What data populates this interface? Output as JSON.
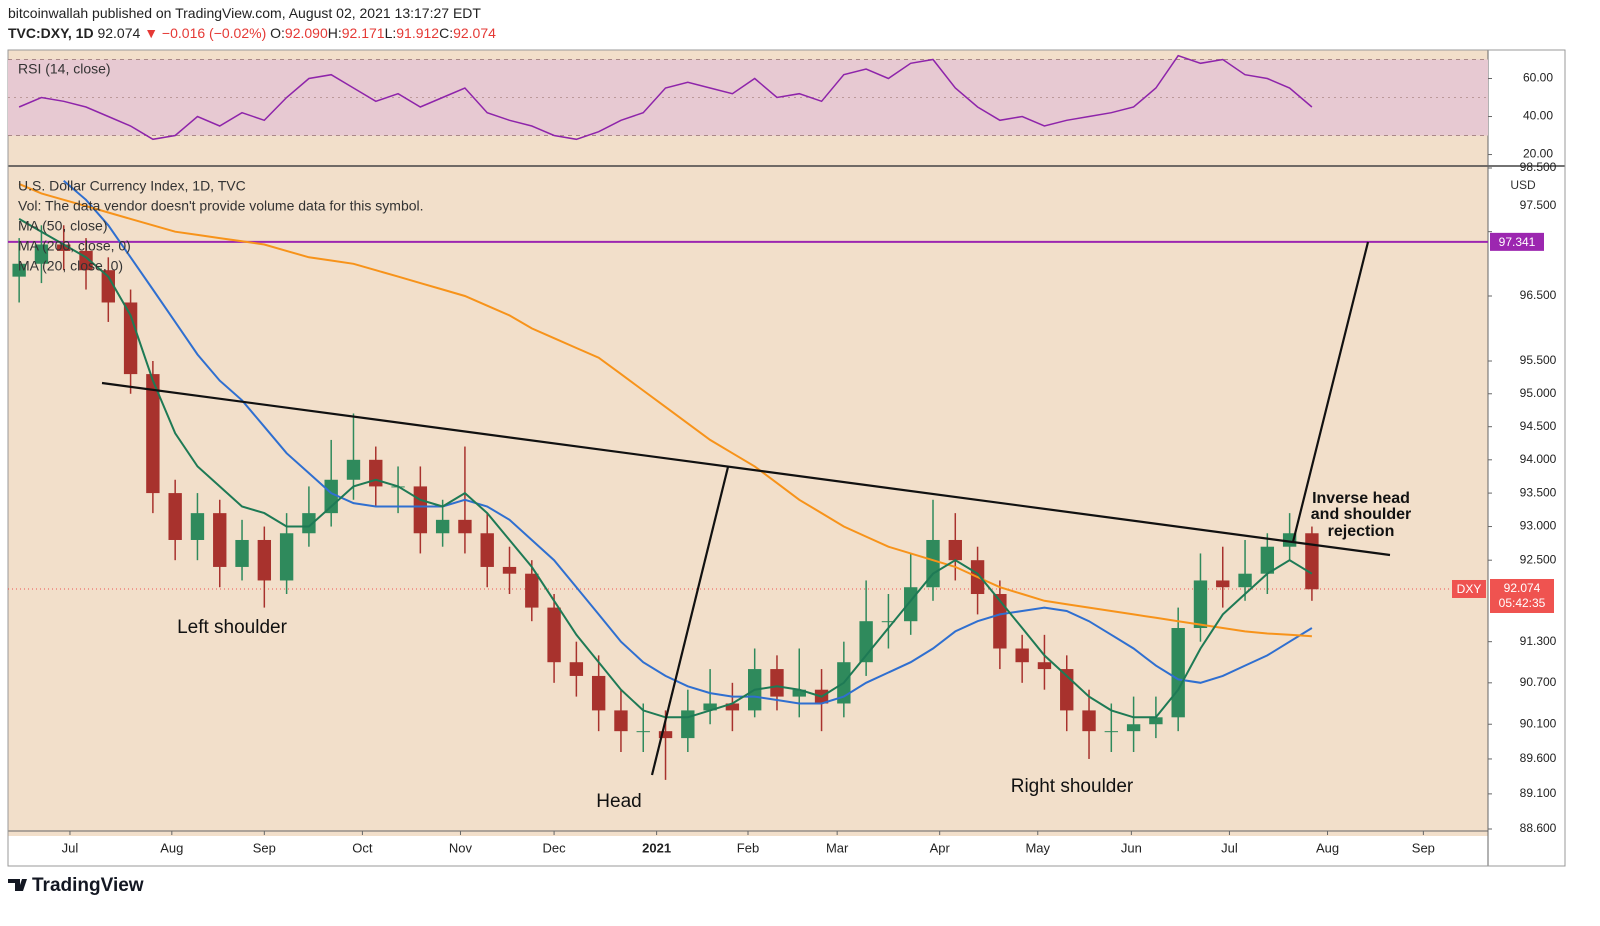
{
  "header": {
    "publisher": "bitcoinwallah published on TradingView.com, August 02, 2021 13:17:27 EDT",
    "symbol": "TVC:DXY, 1D",
    "last": "92.074",
    "change": "▼ −0.016 (−0.02%)",
    "ohlc": [
      {
        "label": "O:",
        "value": "92.090"
      },
      {
        "label": "H:",
        "value": "92.171"
      },
      {
        "label": "L:",
        "value": "91.912"
      },
      {
        "label": "C:",
        "value": "92.074"
      }
    ]
  },
  "chart_data": [
    {
      "type": "candlestick",
      "title": "U.S. Dollar Currency Index, 1D, TVC",
      "notes": [
        "Vol: The data vendor doesn't provide volume data for this symbol."
      ],
      "currency": "USD",
      "log_scale": true,
      "grid": false,
      "up_color": "#2f8a5c",
      "down_color": "#a8322d",
      "categories": [
        null,
        null,
        null,
        null,
        null,
        null,
        null,
        null,
        null,
        null,
        null,
        null,
        null,
        null,
        null,
        null,
        null,
        null,
        null,
        null,
        null,
        null,
        null,
        null,
        null,
        null,
        null,
        null,
        null,
        null,
        null,
        null,
        null,
        null,
        null,
        null,
        null,
        null,
        null,
        null,
        null,
        null,
        null,
        null,
        null,
        null,
        null,
        null,
        null,
        null,
        null,
        null,
        null,
        null,
        null,
        null,
        null,
        null,
        null
      ],
      "open": [
        96.8,
        97.0,
        97.3,
        97.2,
        96.9,
        96.4,
        95.3,
        93.5,
        92.8,
        93.2,
        92.4,
        92.8,
        92.2,
        92.9,
        93.2,
        93.7,
        94.0,
        93.6,
        93.6,
        92.9,
        93.1,
        92.9,
        92.4,
        92.3,
        91.8,
        91.0,
        90.8,
        90.3,
        90.0,
        90.0,
        89.9,
        90.3,
        90.4,
        90.3,
        90.9,
        90.5,
        90.6,
        90.4,
        91.0,
        91.6,
        91.6,
        92.1,
        92.8,
        92.5,
        92.0,
        91.2,
        91.0,
        90.9,
        90.3,
        90.0,
        90.0,
        90.1,
        90.2,
        91.5,
        92.2,
        92.1,
        92.3,
        92.7,
        92.9
      ],
      "high": [
        97.4,
        97.6,
        97.6,
        97.4,
        97.1,
        96.6,
        95.5,
        93.7,
        93.5,
        93.4,
        93.1,
        93.0,
        93.2,
        93.6,
        94.3,
        94.7,
        94.2,
        93.9,
        93.9,
        93.4,
        94.2,
        93.2,
        92.7,
        92.5,
        92.0,
        91.3,
        91.1,
        90.6,
        90.4,
        90.3,
        90.6,
        90.9,
        90.7,
        91.2,
        91.1,
        91.2,
        90.9,
        91.3,
        92.2,
        92.0,
        92.6,
        93.4,
        93.2,
        92.7,
        92.2,
        91.4,
        91.4,
        91.1,
        90.6,
        90.4,
        90.5,
        90.5,
        91.8,
        92.6,
        92.7,
        92.8,
        92.9,
        93.2,
        93.0
      ],
      "low": [
        96.4,
        96.7,
        96.9,
        96.6,
        96.1,
        95.0,
        93.2,
        92.5,
        92.5,
        92.1,
        92.2,
        91.8,
        92.0,
        92.7,
        93.0,
        93.4,
        93.3,
        93.2,
        92.6,
        92.7,
        92.6,
        92.1,
        92.0,
        91.6,
        90.7,
        90.5,
        90.0,
        89.7,
        89.7,
        89.3,
        89.7,
        90.1,
        90.0,
        90.2,
        90.3,
        90.2,
        90.0,
        90.2,
        90.8,
        91.2,
        91.4,
        91.9,
        92.2,
        91.7,
        90.9,
        90.7,
        90.6,
        90.0,
        89.6,
        89.7,
        89.7,
        89.9,
        90.0,
        91.3,
        91.8,
        91.9,
        92.0,
        92.5,
        91.9
      ],
      "close": [
        97.0,
        97.3,
        97.2,
        96.9,
        96.4,
        95.3,
        93.5,
        92.8,
        93.2,
        92.4,
        92.8,
        92.2,
        92.9,
        93.2,
        93.7,
        94.0,
        93.6,
        93.6,
        92.9,
        93.1,
        92.9,
        92.4,
        92.3,
        91.8,
        91.0,
        90.8,
        90.3,
        90.0,
        90.0,
        89.9,
        90.3,
        90.4,
        90.3,
        90.9,
        90.5,
        90.6,
        90.4,
        91.0,
        91.6,
        91.6,
        92.1,
        92.8,
        92.5,
        92.0,
        91.2,
        91.0,
        90.9,
        90.3,
        90.0,
        90.0,
        90.1,
        90.2,
        91.5,
        92.2,
        92.1,
        92.3,
        92.7,
        92.9,
        92.07
      ],
      "series": [
        {
          "name": "MA (50, close)",
          "color": "#2f6fd0",
          "values": [
            null,
            null,
            98.3,
            98.0,
            97.6,
            97.1,
            96.6,
            96.1,
            95.6,
            95.2,
            94.9,
            94.5,
            94.1,
            93.8,
            93.5,
            93.35,
            93.3,
            93.3,
            93.3,
            93.3,
            93.4,
            93.3,
            93.1,
            92.8,
            92.5,
            92.1,
            91.7,
            91.3,
            91.0,
            90.8,
            90.65,
            90.55,
            90.5,
            90.5,
            90.45,
            90.4,
            90.4,
            90.5,
            90.7,
            90.85,
            91.0,
            91.2,
            91.45,
            91.6,
            91.7,
            91.75,
            91.8,
            91.75,
            91.6,
            91.4,
            91.2,
            90.95,
            90.75,
            90.7,
            90.8,
            90.95,
            91.1,
            91.3,
            91.5
          ]
        },
        {
          "name": "MA (200, close, 0)",
          "color": "#f7931a",
          "values": [
            98.25,
            98.1,
            98.0,
            97.9,
            97.8,
            97.7,
            97.6,
            97.5,
            97.45,
            97.4,
            97.35,
            97.3,
            97.2,
            97.1,
            97.05,
            97.0,
            96.9,
            96.8,
            96.7,
            96.6,
            96.5,
            96.35,
            96.2,
            96.0,
            95.85,
            95.7,
            95.55,
            95.3,
            95.05,
            94.8,
            94.55,
            94.3,
            94.1,
            93.9,
            93.65,
            93.4,
            93.2,
            93.0,
            92.85,
            92.7,
            92.6,
            92.5,
            92.4,
            92.25,
            92.1,
            92.0,
            91.9,
            91.85,
            91.8,
            91.75,
            91.7,
            91.65,
            91.6,
            91.55,
            91.5,
            91.45,
            91.42,
            91.4,
            91.38
          ]
        },
        {
          "name": "MA (20, close, 0)",
          "color": "#1e7a55",
          "values": [
            97.7,
            97.5,
            97.3,
            97.1,
            96.8,
            96.2,
            95.2,
            94.4,
            93.9,
            93.6,
            93.3,
            93.2,
            93.0,
            93.0,
            93.3,
            93.6,
            93.7,
            93.6,
            93.4,
            93.3,
            93.5,
            93.2,
            92.8,
            92.4,
            91.9,
            91.4,
            91.0,
            90.6,
            90.3,
            90.2,
            90.2,
            90.3,
            90.4,
            90.6,
            90.65,
            90.6,
            90.5,
            90.7,
            91.1,
            91.5,
            91.9,
            92.3,
            92.5,
            92.3,
            91.9,
            91.5,
            91.1,
            90.8,
            90.5,
            90.3,
            90.2,
            90.2,
            90.6,
            91.2,
            91.7,
            92.0,
            92.3,
            92.5,
            92.3
          ]
        }
      ],
      "levels": [
        {
          "value": 97.341,
          "label": "97.341",
          "color": "#9c27b0"
        }
      ],
      "last_price": {
        "value": 92.074,
        "label": "92.074",
        "symbol": "DXY",
        "countdown": "05:42:35",
        "color": "#ef5350"
      },
      "ylim": [
        88.6,
        98.5
      ],
      "yticks": [
        {
          "value": 98.5,
          "label": "98.500"
        },
        {
          "value": 97.5,
          "label": "97.500"
        },
        {
          "value": 96.5,
          "label": "96.500"
        },
        {
          "value": 95.5,
          "label": "95.500"
        },
        {
          "value": 95,
          "label": "95.000"
        },
        {
          "value": 94.5,
          "label": "94.500"
        },
        {
          "value": 94,
          "label": "94.000"
        },
        {
          "value": 93.5,
          "label": "93.500"
        },
        {
          "value": 93,
          "label": "93.000"
        },
        {
          "value": 92.5,
          "label": "92.500"
        },
        {
          "value": 91.3,
          "label": "91.300"
        },
        {
          "value": 90.7,
          "label": "90.700"
        },
        {
          "value": 90.1,
          "label": "90.100"
        },
        {
          "value": 89.6,
          "label": "89.600"
        },
        {
          "value": 89.1,
          "label": "89.100"
        },
        {
          "value": 88.6,
          "label": "88.600"
        }
      ],
      "xlim": [
        -0.5,
        65.9
      ],
      "xticks": [
        {
          "value": 2.28,
          "label": "Jul"
        },
        {
          "value": 6.85,
          "label": "Aug"
        },
        {
          "value": 11.0,
          "label": "Sep"
        },
        {
          "value": 15.4,
          "label": "Oct"
        },
        {
          "value": 19.8,
          "label": "Nov"
        },
        {
          "value": 24.0,
          "label": "Dec"
        },
        {
          "value": 28.6,
          "label": "2021"
        },
        {
          "value": 32.7,
          "label": "Feb"
        },
        {
          "value": 36.7,
          "label": "Mar"
        },
        {
          "value": 41.3,
          "label": "Apr"
        },
        {
          "value": 45.7,
          "label": "May"
        },
        {
          "value": 49.9,
          "label": "Jun"
        },
        {
          "value": 54.3,
          "label": "Jul"
        },
        {
          "value": 58.7,
          "label": "Aug"
        },
        {
          "value": 63.0,
          "label": "Sep"
        }
      ],
      "annotations": [
        {
          "text": "Left shoulder"
        },
        {
          "text": "Head"
        },
        {
          "text": "Right shoulder"
        },
        {
          "lines": [
            "Inverse head",
            "and shoulder",
            "rejection"
          ]
        }
      ]
    },
    {
      "type": "line",
      "title": "RSI (14, close)",
      "color": "#8e24aa",
      "band": [
        30,
        70
      ],
      "band_color": "#e7c9d2",
      "midline": 50,
      "values": [
        45,
        50,
        48,
        45,
        40,
        35,
        28,
        30,
        40,
        35,
        42,
        38,
        50,
        60,
        62,
        55,
        48,
        52,
        45,
        50,
        55,
        42,
        38,
        35,
        30,
        28,
        32,
        38,
        42,
        55,
        58,
        55,
        52,
        60,
        50,
        52,
        48,
        62,
        65,
        60,
        68,
        70,
        55,
        45,
        38,
        40,
        35,
        38,
        40,
        42,
        45,
        55,
        72,
        68,
        70,
        62,
        60,
        55,
        45
      ],
      "ylim": [
        14.5,
        75
      ],
      "yticks": [
        {
          "value": 60,
          "label": "60.00"
        },
        {
          "value": 40,
          "label": "40.00"
        },
        {
          "value": 20,
          "label": "20.00"
        }
      ]
    }
  ],
  "footer": {
    "brand": "TradingView"
  }
}
